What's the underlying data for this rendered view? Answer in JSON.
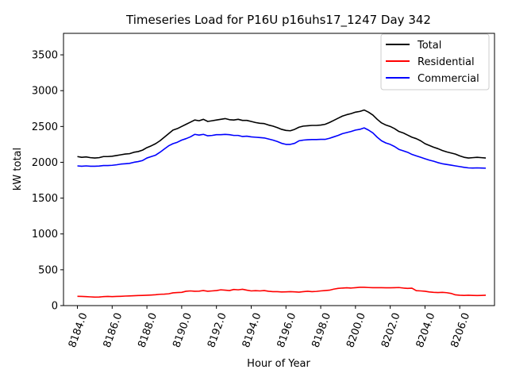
{
  "chart_data": {
    "type": "line",
    "title": "Timeseries Load for P16U p16uhs17_1247  Day 342",
    "xlabel": "Hour of Year",
    "ylabel": "kW total",
    "xlim": [
      8183.2,
      8208.0
    ],
    "ylim": [
      0,
      3800
    ],
    "xticks": [
      8184,
      8186,
      8188,
      8190,
      8192,
      8194,
      8196,
      8198,
      8200,
      8202,
      8204,
      8206
    ],
    "xtick_labels": [
      "8184.0",
      "8186.0",
      "8188.0",
      "8190.0",
      "8192.0",
      "8194.0",
      "8196.0",
      "8198.0",
      "8200.0",
      "8202.0",
      "8204.0",
      "8206.0"
    ],
    "yticks": [
      0,
      500,
      1000,
      1500,
      2000,
      2500,
      3000,
      3500
    ],
    "ytick_labels": [
      "0",
      "500",
      "1000",
      "1500",
      "2000",
      "2500",
      "3000",
      "3500"
    ],
    "grid": false,
    "legend_position": "upper right",
    "x": [
      8184.0,
      8184.25,
      8184.5,
      8184.75,
      8185.0,
      8185.25,
      8185.5,
      8185.75,
      8186.0,
      8186.25,
      8186.5,
      8186.75,
      8187.0,
      8187.25,
      8187.5,
      8187.75,
      8188.0,
      8188.25,
      8188.5,
      8188.75,
      8189.0,
      8189.25,
      8189.5,
      8189.75,
      8190.0,
      8190.25,
      8190.5,
      8190.75,
      8191.0,
      8191.25,
      8191.5,
      8191.75,
      8192.0,
      8192.25,
      8192.5,
      8192.75,
      8193.0,
      8193.25,
      8193.5,
      8193.75,
      8194.0,
      8194.25,
      8194.5,
      8194.75,
      8195.0,
      8195.25,
      8195.5,
      8195.75,
      8196.0,
      8196.25,
      8196.5,
      8196.75,
      8197.0,
      8197.25,
      8197.5,
      8197.75,
      8198.0,
      8198.25,
      8198.5,
      8198.75,
      8199.0,
      8199.25,
      8199.5,
      8199.75,
      8200.0,
      8200.25,
      8200.5,
      8200.75,
      8201.0,
      8201.25,
      8201.5,
      8201.75,
      8202.0,
      8202.25,
      8202.5,
      8202.75,
      8203.0,
      8203.25,
      8203.5,
      8203.75,
      8204.0,
      8204.25,
      8204.5,
      8204.75,
      8205.0,
      8205.25,
      8205.5,
      8205.75,
      8206.0,
      8206.25,
      8206.5,
      8206.75,
      8207.0,
      8207.25,
      8207.5
    ],
    "series": [
      {
        "name": "Total",
        "color": "#000000",
        "values": [
          2080,
          2070,
          2075,
          2065,
          2060,
          2065,
          2080,
          2080,
          2085,
          2095,
          2105,
          2115,
          2120,
          2140,
          2150,
          2170,
          2205,
          2230,
          2260,
          2300,
          2350,
          2400,
          2450,
          2470,
          2500,
          2530,
          2560,
          2590,
          2580,
          2600,
          2570,
          2580,
          2590,
          2600,
          2610,
          2595,
          2590,
          2600,
          2585,
          2585,
          2570,
          2555,
          2545,
          2540,
          2520,
          2505,
          2485,
          2460,
          2445,
          2440,
          2460,
          2490,
          2505,
          2510,
          2515,
          2515,
          2520,
          2530,
          2555,
          2585,
          2615,
          2645,
          2665,
          2680,
          2700,
          2710,
          2730,
          2700,
          2660,
          2600,
          2550,
          2520,
          2500,
          2470,
          2430,
          2410,
          2380,
          2350,
          2330,
          2300,
          2260,
          2235,
          2210,
          2190,
          2165,
          2145,
          2130,
          2115,
          2090,
          2070,
          2060,
          2065,
          2070,
          2065,
          2060
        ]
      },
      {
        "name": "Residential",
        "color": "#ff0000",
        "values": [
          130,
          128,
          125,
          122,
          118,
          120,
          125,
          128,
          125,
          128,
          130,
          133,
          135,
          138,
          140,
          142,
          145,
          148,
          152,
          158,
          160,
          165,
          178,
          182,
          185,
          200,
          205,
          200,
          202,
          210,
          200,
          205,
          210,
          220,
          215,
          210,
          225,
          220,
          228,
          215,
          205,
          208,
          205,
          210,
          200,
          195,
          195,
          190,
          192,
          195,
          192,
          188,
          195,
          200,
          195,
          198,
          205,
          210,
          215,
          230,
          240,
          245,
          248,
          245,
          250,
          255,
          255,
          252,
          250,
          250,
          250,
          248,
          248,
          250,
          252,
          245,
          240,
          243,
          208,
          205,
          200,
          190,
          185,
          182,
          185,
          180,
          170,
          150,
          145,
          142,
          145,
          142,
          140,
          142,
          145
        ]
      },
      {
        "name": "Commercial",
        "color": "#0000ff",
        "values": [
          1950,
          1945,
          1950,
          1945,
          1945,
          1948,
          1955,
          1955,
          1958,
          1965,
          1975,
          1980,
          1985,
          2000,
          2010,
          2025,
          2060,
          2080,
          2100,
          2140,
          2185,
          2230,
          2260,
          2280,
          2310,
          2330,
          2355,
          2390,
          2380,
          2390,
          2370,
          2375,
          2385,
          2385,
          2390,
          2385,
          2375,
          2375,
          2360,
          2365,
          2355,
          2350,
          2345,
          2340,
          2325,
          2310,
          2290,
          2265,
          2250,
          2250,
          2265,
          2300,
          2310,
          2315,
          2318,
          2318,
          2320,
          2320,
          2335,
          2355,
          2375,
          2400,
          2415,
          2430,
          2450,
          2460,
          2480,
          2450,
          2410,
          2350,
          2300,
          2270,
          2250,
          2220,
          2180,
          2160,
          2140,
          2110,
          2090,
          2070,
          2050,
          2030,
          2015,
          1995,
          1980,
          1970,
          1960,
          1950,
          1940,
          1930,
          1922,
          1920,
          1922,
          1920,
          1918
        ]
      }
    ]
  }
}
